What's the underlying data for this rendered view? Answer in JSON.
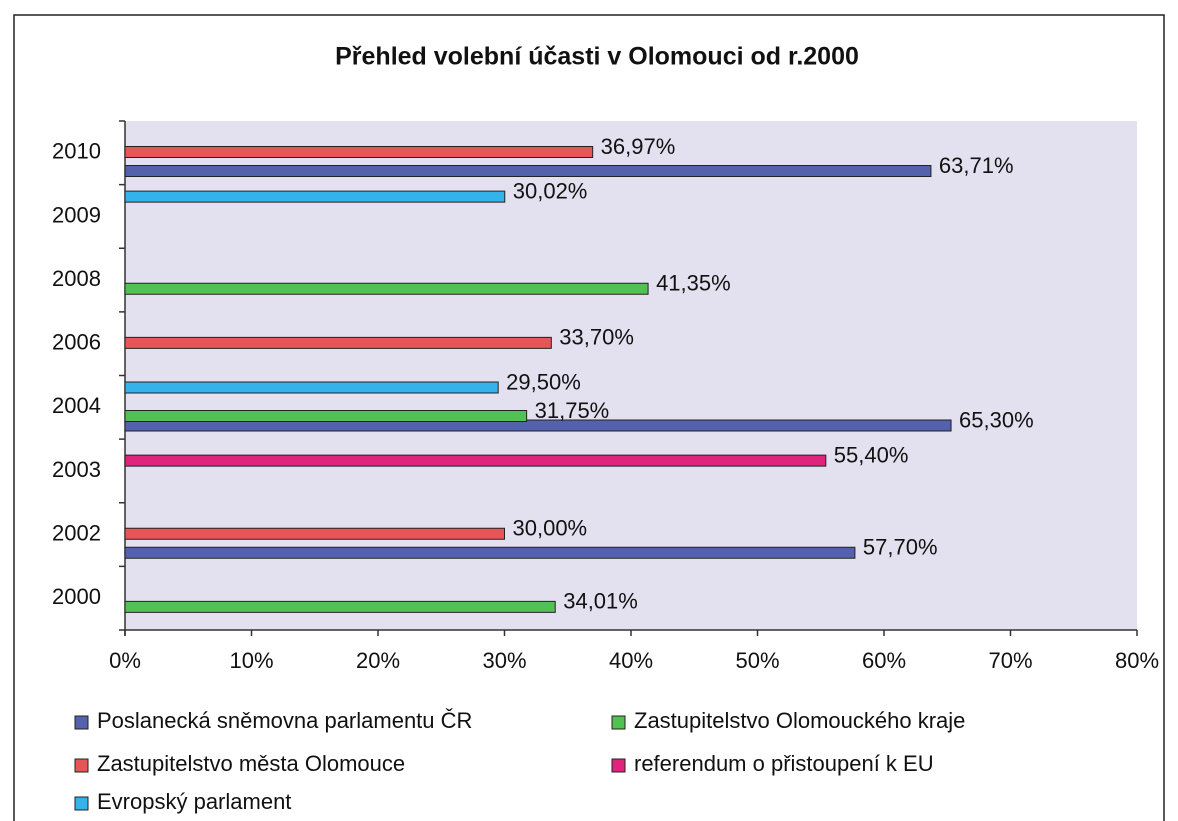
{
  "chart_data": {
    "type": "bar",
    "orientation": "horizontal",
    "title": "Přehled volební účasti v Olomouci od r.2000",
    "categories": [
      "2010",
      "2009",
      "2008",
      "2006",
      "2004",
      "2003",
      "2002",
      "2000"
    ],
    "series": [
      {
        "name": "Poslanecká sněmovna parlamentu ČR",
        "color": "#5461ad",
        "values": [
          63.71,
          null,
          null,
          null,
          65.3,
          null,
          57.7,
          null
        ],
        "value_labels": [
          "63,71%",
          null,
          null,
          null,
          "65,30%",
          null,
          "57,70%",
          null
        ]
      },
      {
        "name": "Zastupitelstvo Olomouckého kraje",
        "color": "#52c152",
        "values": [
          null,
          null,
          41.35,
          null,
          31.75,
          null,
          null,
          34.01
        ],
        "value_labels": [
          null,
          null,
          "41,35%",
          null,
          "31,75%",
          null,
          null,
          "34,01%"
        ]
      },
      {
        "name": "Zastupitelstvo města Olomouce",
        "color": "#e65656",
        "values": [
          36.97,
          null,
          null,
          33.7,
          null,
          null,
          30.0,
          null
        ],
        "value_labels": [
          "36,97%",
          null,
          null,
          "33,70%",
          null,
          null,
          "30,00%",
          null
        ]
      },
      {
        "name": "referendum o přistoupení k EU",
        "color": "#e0237c",
        "values": [
          null,
          null,
          null,
          null,
          null,
          55.4,
          null,
          null
        ],
        "value_labels": [
          null,
          null,
          null,
          null,
          null,
          "55,40%",
          null,
          null
        ]
      },
      {
        "name": "Evropský parlament",
        "color": "#33b3ea",
        "values": [
          null,
          30.02,
          null,
          null,
          29.5,
          null,
          null,
          null
        ],
        "value_labels": [
          null,
          "30,02%",
          null,
          null,
          "29,50%",
          null,
          null,
          null
        ]
      }
    ],
    "xlim": [
      0,
      80
    ],
    "xticks": [
      {
        "value": 0,
        "label": "0%"
      },
      {
        "value": 10,
        "label": "10%"
      },
      {
        "value": 20,
        "label": "20%"
      },
      {
        "value": 30,
        "label": "30%"
      },
      {
        "value": 40,
        "label": "40%"
      },
      {
        "value": 50,
        "label": "50%"
      },
      {
        "value": 60,
        "label": "60%"
      },
      {
        "value": 70,
        "label": "70%"
      },
      {
        "value": 80,
        "label": "80%"
      }
    ]
  }
}
